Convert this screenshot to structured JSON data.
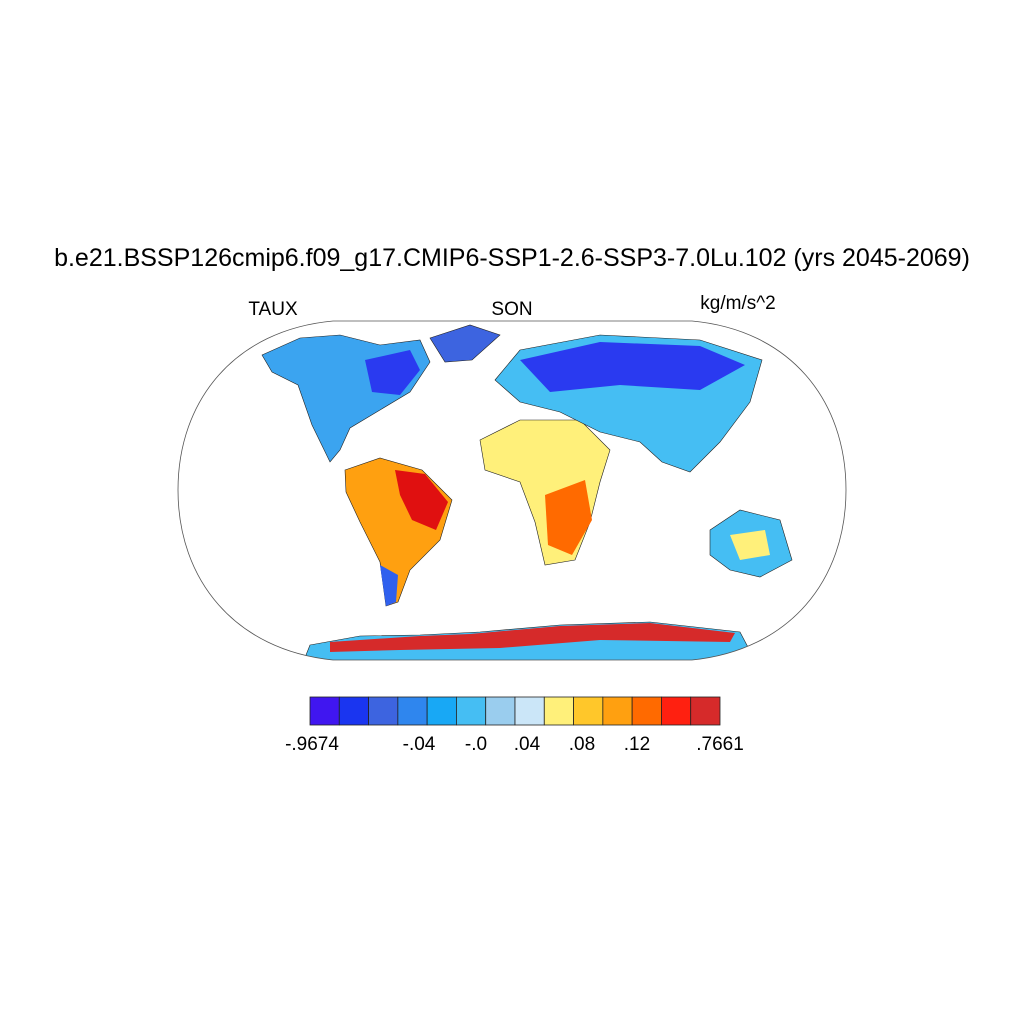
{
  "header": {
    "title": "b.e21.BSSP126cmip6.f09_g17.CMIP6-SSP1-2.6-SSP3-7.0Lu.102 (yrs 2045-2069)",
    "left": "TAUX",
    "center": "SON",
    "right": "kg/m/s^2"
  },
  "colorbar": {
    "colors": [
      "#4016f0",
      "#1a35f0",
      "#3d64e0",
      "#2f86ee",
      "#18a8f5",
      "#45bef3",
      "#9acdee",
      "#cbe6f8",
      "#fff07a",
      "#ffc72a",
      "#ffa010",
      "#ff6a00",
      "#ff2010",
      "#d62a2a"
    ],
    "labels": [
      "-.9674",
      "-.04",
      "-.0",
      ".04",
      ".08",
      ".12",
      ".7661"
    ]
  }
}
